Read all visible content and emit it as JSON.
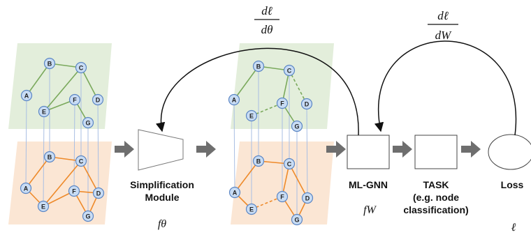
{
  "diagram": {
    "graph_nodes": [
      "A",
      "B",
      "C",
      "E",
      "F",
      "D",
      "G"
    ],
    "blocks": {
      "simplification": {
        "label_line1": "Simplification",
        "label_line2": "Module",
        "symbol": "fθ"
      },
      "mlgnn": {
        "label": "ML-GNN",
        "symbol": "fW"
      },
      "task": {
        "label_line1": "TASK",
        "label_line2": "(e.g. node",
        "label_line3": "classification)"
      },
      "loss": {
        "label": "Loss",
        "symbol": "ℓ"
      }
    },
    "feedback": {
      "theta": {
        "numerator": "dℓ",
        "denominator": "dθ"
      },
      "w": {
        "numerator": "dℓ",
        "denominator": "dW"
      }
    },
    "colors": {
      "green_layer_fill": "#e3eedb",
      "orange_layer_fill": "#fbe6d4",
      "green_edge": "#7aa95c",
      "orange_edge": "#ee8a2a",
      "node_fill": "#c8dcf4",
      "node_stroke": "#5b86c4",
      "arrow": "#6e6e6e"
    }
  }
}
